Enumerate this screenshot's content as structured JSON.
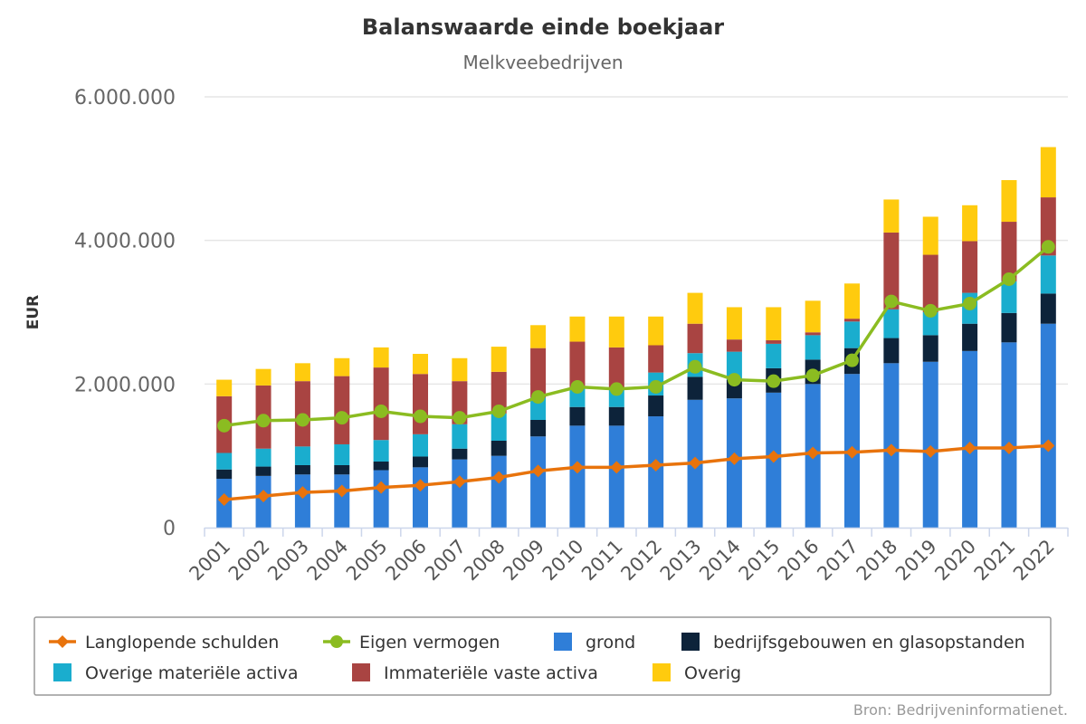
{
  "colors": {
    "grond": "#2f7ed8",
    "bedrijfsgebouwen": "#0d233a",
    "overige_materiele": "#1aadce",
    "immateriele": "#a94442",
    "overig": "#ffcb0e",
    "schulden": "#e8730c",
    "eigen_vermogen": "#8bbc21",
    "grid": "#e6e6e6",
    "axis": "#ccd6eb"
  },
  "credits": "Bron: Bedrijveninformatienet.",
  "chart_data": {
    "type": "bar",
    "stacking": "normal",
    "title": "Balanswaarde einde boekjaar",
    "subtitle": "Melkveebedrijven",
    "xlabel": "",
    "ylabel": "EUR",
    "ylim": [
      0,
      6000000
    ],
    "yticks": [
      0,
      2000000,
      4000000,
      6000000
    ],
    "ytick_labels": [
      "0",
      "2.000.000",
      "4.000.000",
      "6.000.000"
    ],
    "grid": true,
    "legend_position": "bottom",
    "categories": [
      "2001",
      "2002",
      "2003",
      "2004",
      "2005",
      "2006",
      "2007",
      "2008",
      "2009",
      "2010",
      "2011",
      "2012",
      "2013",
      "2014",
      "2015",
      "2016",
      "2017",
      "2018",
      "2019",
      "2020",
      "2021",
      "2022"
    ],
    "series": [
      {
        "name": "grond",
        "type": "bar",
        "color_key": "grond",
        "values": [
          680000,
          720000,
          740000,
          740000,
          800000,
          840000,
          950000,
          1000000,
          1270000,
          1420000,
          1420000,
          1550000,
          1780000,
          1800000,
          1880000,
          2000000,
          2140000,
          2290000,
          2310000,
          2460000,
          2580000,
          2840000
        ]
      },
      {
        "name": "bedrijfsgebouwen en glasopstanden",
        "type": "bar",
        "color_key": "bedrijfsgebouwen",
        "values": [
          130000,
          130000,
          130000,
          130000,
          120000,
          150000,
          150000,
          210000,
          230000,
          260000,
          260000,
          290000,
          320000,
          260000,
          340000,
          340000,
          360000,
          350000,
          370000,
          380000,
          410000,
          420000
        ]
      },
      {
        "name": "Overige materiële activa",
        "type": "bar",
        "color_key": "overige_materiele",
        "values": [
          230000,
          250000,
          260000,
          290000,
          300000,
          310000,
          340000,
          380000,
          310000,
          270000,
          270000,
          320000,
          330000,
          390000,
          340000,
          340000,
          370000,
          400000,
          320000,
          430000,
          440000,
          530000
        ]
      },
      {
        "name": "Immateriële vaste activa",
        "type": "bar",
        "color_key": "immateriele",
        "values": [
          790000,
          880000,
          910000,
          950000,
          1010000,
          840000,
          600000,
          580000,
          690000,
          640000,
          560000,
          380000,
          410000,
          170000,
          50000,
          40000,
          40000,
          1070000,
          800000,
          720000,
          830000,
          810000
        ]
      },
      {
        "name": "Overig",
        "type": "bar",
        "color_key": "overig",
        "values": [
          230000,
          230000,
          250000,
          250000,
          280000,
          280000,
          320000,
          350000,
          320000,
          350000,
          430000,
          400000,
          430000,
          450000,
          460000,
          440000,
          490000,
          460000,
          530000,
          500000,
          580000,
          700000
        ]
      },
      {
        "name": "Langlopende schulden",
        "type": "line",
        "marker": "diamond",
        "color_key": "schulden",
        "values": [
          390000,
          440000,
          490000,
          510000,
          560000,
          590000,
          640000,
          700000,
          790000,
          840000,
          840000,
          870000,
          900000,
          960000,
          990000,
          1040000,
          1050000,
          1080000,
          1060000,
          1110000,
          1110000,
          1140000
        ]
      },
      {
        "name": "Eigen vermogen",
        "type": "line",
        "marker": "circle",
        "color_key": "eigen_vermogen",
        "values": [
          1420000,
          1490000,
          1500000,
          1530000,
          1620000,
          1550000,
          1530000,
          1620000,
          1820000,
          1960000,
          1930000,
          1960000,
          2240000,
          2060000,
          2040000,
          2120000,
          2330000,
          3150000,
          3020000,
          3120000,
          3460000,
          3910000
        ]
      }
    ]
  },
  "legend": {
    "rows": [
      [
        {
          "label": "Langlopende schulden",
          "symbol": "line-diamond",
          "color_key": "schulden"
        },
        {
          "label": "Eigen vermogen",
          "symbol": "line-circle",
          "color_key": "eigen_vermogen"
        },
        {
          "label": "grond",
          "symbol": "square",
          "color_key": "grond"
        },
        {
          "label": "bedrijfsgebouwen en glasopstanden",
          "symbol": "square",
          "color_key": "bedrijfsgebouwen"
        }
      ],
      [
        {
          "label": "Overige materiële activa",
          "symbol": "square",
          "color_key": "overige_materiele"
        },
        {
          "label": "Immateriële vaste activa",
          "symbol": "square",
          "color_key": "immateriele"
        },
        {
          "label": "Overig",
          "symbol": "square",
          "color_key": "overig"
        }
      ]
    ]
  }
}
